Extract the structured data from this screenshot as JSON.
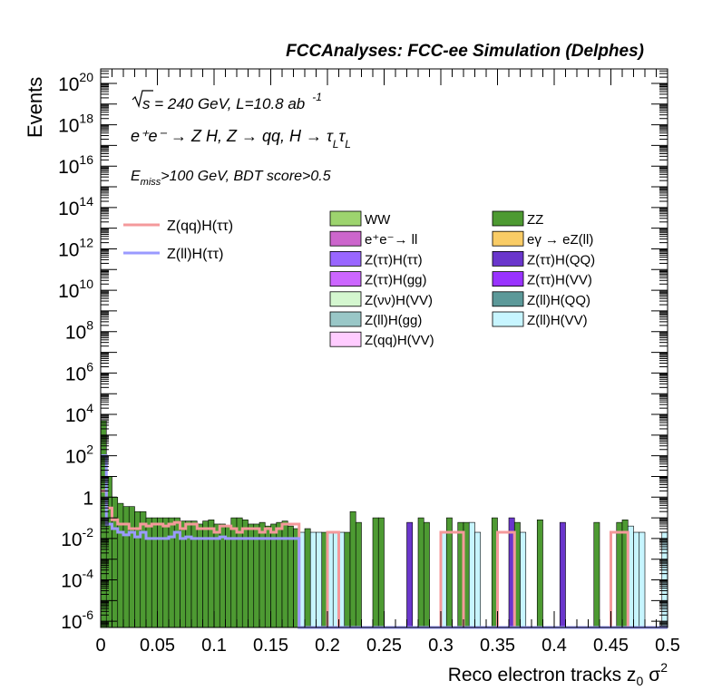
{
  "chart_data": {
    "type": "bar",
    "title": "FCCAnalyses: FCC-ee Simulation (Delphes)",
    "xlabel_main": "Reco electron tracks z",
    "xlabel_sub": "0",
    "xlabel_tail": "σ",
    "xlabel_sup": "2",
    "ylabel": "Events",
    "xlim": [
      0,
      0.5
    ],
    "ylim_exp": [
      -6.3,
      20.7
    ],
    "yscale": "log",
    "xticks": [
      "0",
      "0.05",
      "0.1",
      "0.15",
      "0.2",
      "0.25",
      "0.3",
      "0.35",
      "0.4",
      "0.45",
      "0.5"
    ],
    "yticks_exp": [
      "-6",
      "-4",
      "-2",
      "0",
      "2",
      "4",
      "6",
      "8",
      "10",
      "12",
      "14",
      "16",
      "18",
      "20"
    ],
    "annotations": {
      "sqrt_s": "s = 240 GeV, L=10.8 ab",
      "lumi_exp": "-1",
      "process": "e⁺e⁻ → Z H, Z → qq, H → τ",
      "tau_sub_1": "L",
      "tau_sub_2": "L",
      "cut_main": "E",
      "cut_sub": "miss",
      "cut_tail": ">100 GeV, BDT score>0.5"
    },
    "signal_series": [
      {
        "name": "Z(qq)H(ττ)",
        "color": "#f4999b",
        "values": [
          2.0,
          0.3,
          0.08,
          0.05,
          0.05,
          0.03,
          0.03,
          0.05,
          0.04,
          0.05,
          0.05,
          0.04,
          0.05,
          0.06,
          0.03,
          0.05,
          0.05,
          0.03,
          0.03,
          0.03,
          0.02,
          0.04,
          0.04,
          0.03,
          0.02,
          0.03,
          0.03,
          0.03,
          0.02,
          0.03,
          0.02,
          0.03,
          0.05,
          0.05,
          0.05,
          0.0,
          0.0,
          0.0,
          0.0,
          0.0,
          0.02,
          0.02,
          0.0,
          0.0,
          0.0,
          0.0,
          0.0,
          0.0,
          0.0,
          0.0,
          0.0,
          0.0,
          0.0,
          0.0,
          0.0,
          0.0,
          0.0,
          0.0,
          0.0,
          0.0,
          0.02,
          0.02,
          0.02,
          0.02,
          0.0,
          0.0,
          0.0,
          0.0,
          0.0,
          0.0,
          0.02,
          0.02,
          0.02,
          0.0,
          0.0,
          0.0,
          0.0,
          0.0,
          0.0,
          0.0,
          0.0,
          0.0,
          0.0,
          0.0,
          0.0,
          0.0,
          0.0,
          0.0,
          0.0,
          0.0,
          0.02,
          0.02,
          0.02,
          0.0,
          0.0,
          0.0,
          0.0,
          0.0,
          0.0,
          0.0
        ]
      },
      {
        "name": "Z(ll)H(ττ)",
        "color": "#9a9aff",
        "values": [
          100.0,
          0.05,
          0.03,
          0.02,
          0.015,
          0.02,
          0.012,
          0.02,
          0.01,
          0.01,
          0.01,
          0.01,
          0.012,
          0.02,
          0.01,
          0.012,
          0.01,
          0.01,
          0.01,
          0.01,
          0.01,
          0.012,
          0.01,
          0.01,
          0.01,
          0.01,
          0.01,
          0.01,
          0.01,
          0.01,
          0.01,
          0.01,
          0.01,
          0.01,
          0.01,
          0.0,
          0.0,
          0.0,
          0.0,
          0.0,
          0.0,
          0.0,
          0.0,
          0.0,
          0.0,
          0.0,
          0.0,
          0.0,
          0.0,
          0.0,
          0.0,
          0.0,
          0.0,
          0.0,
          0.0,
          0.0,
          0.0,
          0.0,
          0.0,
          0.0,
          0.0,
          0.0,
          0.0,
          0.0,
          0.0,
          0.0,
          0.0,
          0.0,
          0.0,
          0.0,
          0.0,
          0.0,
          0.0,
          0.0,
          0.0,
          0.0,
          0.0,
          0.0,
          0.0,
          0.0,
          0.0,
          0.0,
          0.0,
          0.0,
          0.0,
          0.0,
          0.0,
          0.0,
          0.0,
          0.0,
          0.0,
          0.0,
          0.0,
          0.0,
          0.0,
          0.0,
          0.0,
          0.0,
          0.0,
          0.0
        ]
      }
    ],
    "background_stack": {
      "bin_width": 0.005,
      "totals": [
        5000.0,
        10.0,
        1.0,
        0.5,
        0.35,
        0.35,
        0.2,
        0.2,
        0.1,
        0.1,
        0.1,
        0.1,
        0.1,
        0.1,
        0.07,
        0.07,
        0.07,
        0.05,
        0.07,
        0.08,
        0.05,
        0.05,
        0.04,
        0.1,
        0.1,
        0.08,
        0.05,
        0.05,
        0.06,
        0.04,
        0.05,
        0.06,
        0.07,
        0.04,
        0.03,
        0.02,
        0.03,
        0.02,
        0.02,
        0.02,
        0.02,
        0.02,
        0.02,
        0.02,
        0.2,
        0.06,
        0.0,
        0.0,
        0.1,
        0.1,
        0.0,
        0.0,
        0.0,
        0.0,
        0.06,
        0.0,
        0.1,
        0.06,
        0.0,
        0.0,
        0.02,
        0.1,
        0.0,
        0.06,
        0.06,
        0.06,
        0.02,
        0.0,
        0.0,
        0.1,
        0.0,
        0.0,
        0.1,
        0.06,
        0.02,
        0.0,
        0.0,
        0.08,
        0.0,
        0.0,
        0.0,
        0.06,
        0.0,
        0.0,
        0.0,
        0.0,
        0.0,
        0.06,
        0.0,
        0.0,
        0.0,
        0.06,
        0.08,
        0.04,
        0.02,
        0.02,
        0.0,
        0.0,
        0.0,
        0.02
      ],
      "dominant_color": [
        "#4d9a32",
        "#4d9a32",
        "#4d9a32",
        "#4d9a32",
        "#4d9a32",
        "#4d9a32",
        "#4d9a32",
        "#4d9a32",
        "#4d9a32",
        "#4d9a32",
        "#4d9a32",
        "#4d9a32",
        "#4d9a32",
        "#4d9a32",
        "#4d9a32",
        "#4d9a32",
        "#4d9a32",
        "#4d9a32",
        "#4d9a32",
        "#4d9a32",
        "#4d9a32",
        "#4d9a32",
        "#4d9a32",
        "#4d9a32",
        "#4d9a32",
        "#4d9a32",
        "#4d9a32",
        "#4d9a32",
        "#4d9a32",
        "#4d9a32",
        "#4d9a32",
        "#4d9a32",
        "#4d9a32",
        "#4d9a32",
        "#4d9a32",
        "#c7f5ff",
        "#4d9a32",
        "#c7f5ff",
        "#c7f5ff",
        "#4d9a32",
        "#c7f5ff",
        "#c7f5ff",
        "#c7f5ff",
        "#4d9a32",
        "#4d9a32",
        "#4d9a32",
        "#ffffff",
        "#ffffff",
        "#4d9a32",
        "#4d9a32",
        "#ffffff",
        "#ffffff",
        "#ffffff",
        "#ffffff",
        "#6a36cc",
        "#ffffff",
        "#4d9a32",
        "#4d9a32",
        "#ffffff",
        "#ffffff",
        "#c7f5ff",
        "#4d9a32",
        "#ffffff",
        "#4d9a32",
        "#4d9a32",
        "#c7f5ff",
        "#c7f5ff",
        "#ffffff",
        "#ffffff",
        "#4d9a32",
        "#ffffff",
        "#ffffff",
        "#6a36cc",
        "#4d9a32",
        "#c7f5ff",
        "#ffffff",
        "#ffffff",
        "#4d9a32",
        "#ffffff",
        "#ffffff",
        "#ffffff",
        "#6a36cc",
        "#ffffff",
        "#ffffff",
        "#ffffff",
        "#ffffff",
        "#ffffff",
        "#4d9a32",
        "#ffffff",
        "#ffffff",
        "#ffffff",
        "#4d9a32",
        "#4d9a32",
        "#c7f5ff",
        "#c7f5ff",
        "#c7f5ff",
        "#ffffff",
        "#ffffff",
        "#ffffff",
        "#c7f5ff"
      ]
    },
    "legend": {
      "signal": [
        {
          "label": "Z(qq)H(ττ)",
          "color": "#f4999b"
        },
        {
          "label": "Z(ll)H(ττ)",
          "color": "#9a9aff"
        }
      ],
      "background_col1": [
        {
          "label": "WW",
          "color": "#9dd46e"
        },
        {
          "label": "e⁺e⁻→ ll",
          "color": "#cc66cc"
        },
        {
          "label": "Z(ττ)H(ττ)",
          "color": "#9966ff"
        },
        {
          "label": "Z(ττ)H(gg)",
          "color": "#cc66ff"
        },
        {
          "label": "Z(νν)H(VV)",
          "color": "#d4f7cf"
        },
        {
          "label": "Z(ll)H(gg)",
          "color": "#99c7c7"
        },
        {
          "label": "Z(qq)H(VV)",
          "color": "#ffccff"
        }
      ],
      "background_col2": [
        {
          "label": "ZZ",
          "color": "#4d9a32"
        },
        {
          "label": "eγ → eZ(ll)",
          "color": "#f9cc66"
        },
        {
          "label": "Z(ττ)H(QQ)",
          "color": "#6a36cc"
        },
        {
          "label": "Z(ττ)H(VV)",
          "color": "#9933ff"
        },
        {
          "label": "Z(ll)H(QQ)",
          "color": "#5c9999"
        },
        {
          "label": "Z(ll)H(VV)",
          "color": "#c7f5ff"
        }
      ]
    }
  }
}
